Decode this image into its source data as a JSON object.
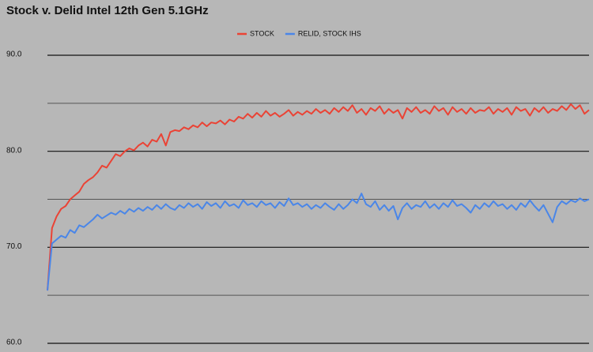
{
  "chart_data": {
    "type": "line",
    "title": "Stock v. Delid Intel 12th Gen 5.1GHz",
    "categories": [
      null,
      null,
      null,
      null,
      null,
      null,
      null,
      null,
      null,
      null,
      null,
      null,
      null,
      null,
      null,
      null,
      null,
      null,
      null,
      null,
      null,
      null,
      null,
      null,
      null,
      null,
      null,
      null,
      null,
      null,
      null,
      null,
      null,
      null,
      null,
      null,
      null,
      null,
      null,
      null,
      null,
      null,
      null,
      null,
      null,
      null,
      null,
      null,
      null,
      null,
      null,
      null,
      null,
      null,
      null,
      null,
      null,
      null,
      null,
      null,
      null,
      null,
      null,
      null,
      null,
      null,
      null,
      null,
      null,
      null,
      null,
      null,
      null,
      null,
      null,
      null,
      null,
      null,
      null,
      null,
      null,
      null,
      null,
      null,
      null,
      null,
      null,
      null,
      null,
      null,
      null,
      null,
      null,
      null,
      null,
      null,
      null,
      null,
      null,
      null,
      null,
      null,
      null,
      null,
      null,
      null,
      null,
      null,
      null,
      null,
      null,
      null,
      null,
      null,
      null,
      null,
      null,
      null,
      null,
      null
    ],
    "series": [
      {
        "name": "STOCK",
        "color": "#ea4335",
        "values": [
          65.5,
          72.0,
          73.2,
          74.0,
          74.3,
          75.0,
          75.4,
          75.8,
          76.6,
          77.0,
          77.3,
          77.8,
          78.5,
          78.3,
          79.0,
          79.7,
          79.5,
          80.0,
          80.3,
          80.1,
          80.6,
          80.9,
          80.5,
          81.2,
          81.0,
          81.8,
          80.6,
          82.0,
          82.2,
          82.1,
          82.5,
          82.3,
          82.7,
          82.5,
          83.0,
          82.6,
          83.0,
          82.9,
          83.2,
          82.8,
          83.3,
          83.1,
          83.6,
          83.4,
          83.9,
          83.5,
          84.0,
          83.6,
          84.2,
          83.7,
          84.0,
          83.6,
          83.9,
          84.3,
          83.7,
          84.1,
          83.8,
          84.2,
          83.9,
          84.4,
          84.0,
          84.3,
          83.9,
          84.5,
          84.1,
          84.6,
          84.2,
          84.8,
          84.0,
          84.4,
          83.8,
          84.5,
          84.2,
          84.7,
          83.9,
          84.4,
          84.0,
          84.3,
          83.4,
          84.5,
          84.1,
          84.6,
          84.0,
          84.3,
          83.9,
          84.7,
          84.2,
          84.5,
          83.8,
          84.6,
          84.1,
          84.4,
          83.9,
          84.5,
          84.0,
          84.3,
          84.2,
          84.6,
          83.9,
          84.4,
          84.1,
          84.5,
          83.8,
          84.6,
          84.2,
          84.4,
          83.7,
          84.5,
          84.1,
          84.6,
          84.0,
          84.4,
          84.2,
          84.7,
          84.3,
          84.9,
          84.4,
          84.8,
          83.9,
          84.3
        ]
      },
      {
        "name": "RELID, STOCK IHS",
        "color": "#4a86e8",
        "values": [
          65.5,
          70.4,
          70.8,
          71.2,
          71.0,
          71.8,
          71.5,
          72.3,
          72.1,
          72.5,
          72.9,
          73.4,
          73.0,
          73.3,
          73.6,
          73.4,
          73.8,
          73.5,
          74.0,
          73.7,
          74.1,
          73.8,
          74.2,
          73.9,
          74.4,
          74.0,
          74.5,
          74.1,
          73.9,
          74.4,
          74.1,
          74.6,
          74.2,
          74.5,
          74.0,
          74.7,
          74.3,
          74.6,
          74.1,
          74.8,
          74.3,
          74.5,
          74.1,
          74.9,
          74.4,
          74.6,
          74.2,
          74.8,
          74.4,
          74.6,
          74.1,
          74.7,
          74.3,
          75.1,
          74.4,
          74.6,
          74.2,
          74.5,
          74.0,
          74.4,
          74.1,
          74.6,
          74.2,
          73.9,
          74.5,
          74.0,
          74.4,
          75.0,
          74.6,
          75.6,
          74.5,
          74.2,
          74.8,
          73.9,
          74.4,
          73.8,
          74.3,
          72.9,
          74.1,
          74.6,
          74.0,
          74.4,
          74.2,
          74.8,
          74.1,
          74.5,
          74.0,
          74.6,
          74.2,
          74.9,
          74.3,
          74.5,
          74.1,
          73.6,
          74.4,
          74.0,
          74.6,
          74.2,
          74.8,
          74.3,
          74.5,
          74.0,
          74.4,
          73.9,
          74.6,
          74.2,
          74.9,
          74.3,
          73.8,
          74.4,
          73.5,
          72.6,
          74.2,
          74.8,
          74.5,
          74.9,
          74.7,
          75.1,
          74.8,
          75.0
        ]
      }
    ],
    "ylim": [
      60,
      90
    ],
    "yticks": [
      {
        "value": 60,
        "label": "60.0"
      },
      {
        "value": 70,
        "label": "70.0"
      },
      {
        "value": 80,
        "label": "80.0"
      },
      {
        "value": 90,
        "label": "90.0"
      }
    ],
    "yminor": [
      65,
      75,
      85
    ],
    "grid": true,
    "legend": "top"
  }
}
